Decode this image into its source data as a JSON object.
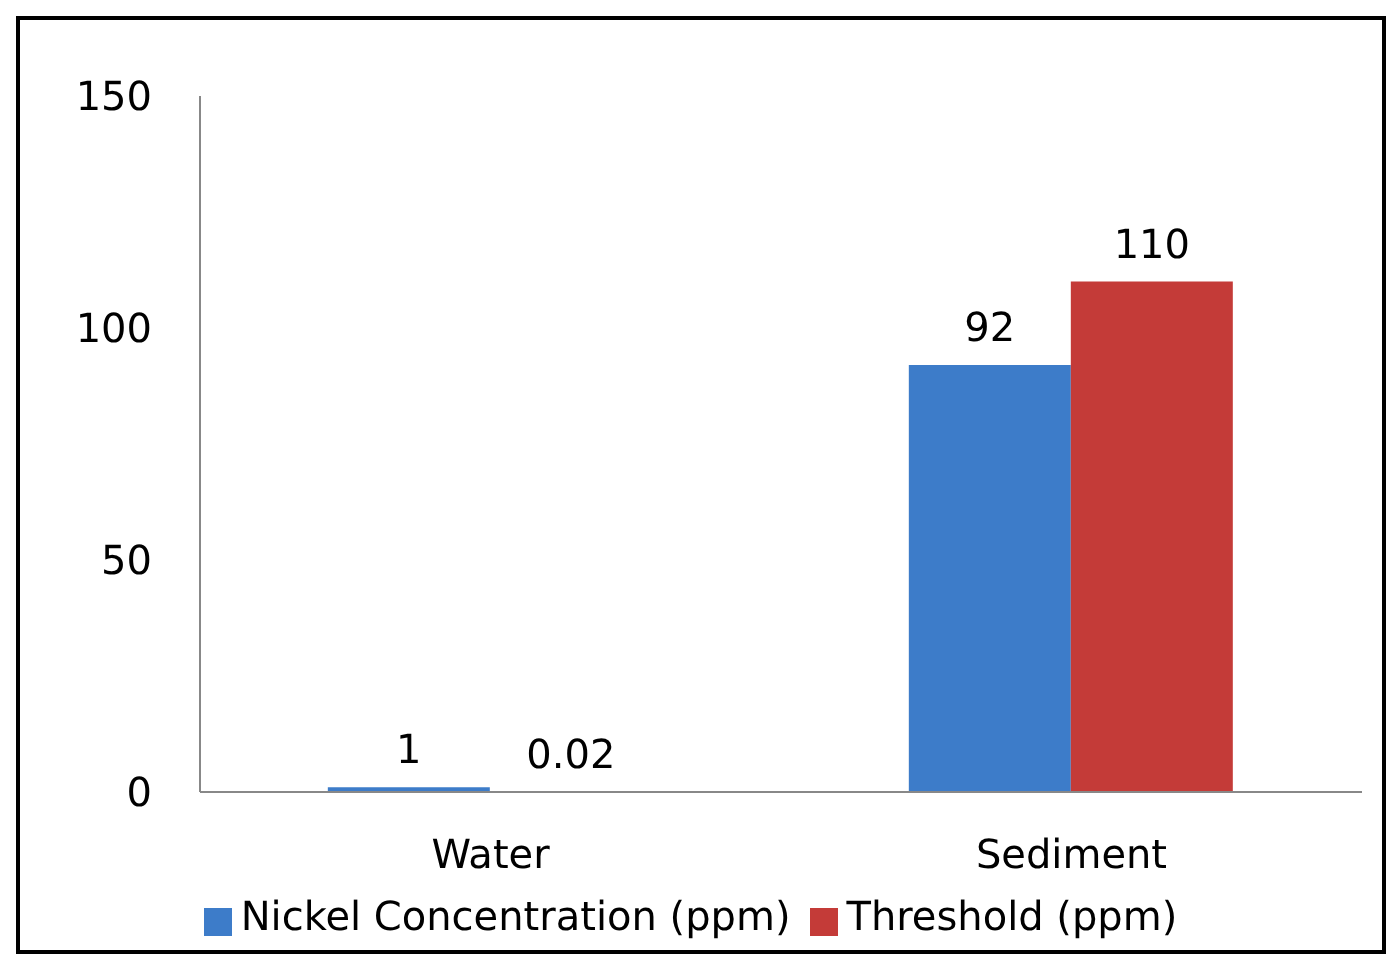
{
  "chart_data": {
    "type": "bar",
    "categories": [
      "Water",
      "Sediment"
    ],
    "series": [
      {
        "name": "Nickel Concentration (ppm)",
        "color": "#3d7cc9",
        "values": [
          1,
          92
        ]
      },
      {
        "name": "Threshold (ppm)",
        "color": "#c43b38",
        "values": [
          0.02,
          110
        ]
      }
    ],
    "ylim": [
      0,
      150
    ],
    "yticks": [
      0,
      50,
      100,
      150
    ],
    "grid": false,
    "legend": "bottom",
    "data_labels": true
  }
}
